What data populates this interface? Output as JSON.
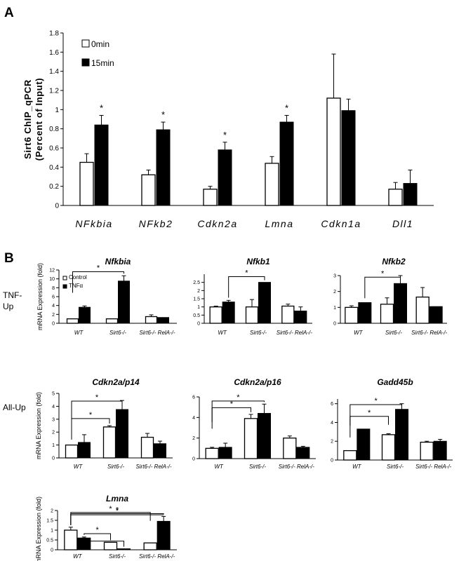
{
  "panels": [
    "A",
    "B"
  ],
  "row_labels": [
    [
      "TNF-",
      "Up"
    ],
    [
      "All-Up"
    ]
  ],
  "chart_data": [
    {
      "id": "A",
      "type": "bar",
      "title": "",
      "ylabel": "Sirt6 ChIP_qPCR (Percent of Input)",
      "ylabel_lines": [
        "Sirt6 ChIP_qPCR",
        "(Percent of Input)"
      ],
      "xlabel": "",
      "ylim": [
        0,
        1.8
      ],
      "yticks": [
        0,
        0.2,
        0.4,
        0.6,
        0.8,
        1,
        1.2,
        1.4,
        1.6,
        1.8
      ],
      "categories": [
        "NFkbia",
        "NFkb2",
        "Cdkn2a",
        "Lmna",
        "Cdkn1a",
        "Dll1"
      ],
      "legend": [
        "0min",
        "15min"
      ],
      "legend_position": "top-left",
      "series": [
        {
          "name": "0min",
          "color": "#ffffff",
          "values": [
            0.45,
            0.32,
            0.17,
            0.44,
            1.12,
            0.17
          ],
          "errors": [
            0.09,
            0.05,
            0.03,
            0.07,
            0.46,
            0.07
          ]
        },
        {
          "name": "15min",
          "color": "#000000",
          "values": [
            0.84,
            0.79,
            0.58,
            0.87,
            0.99,
            0.23
          ],
          "errors": [
            0.1,
            0.08,
            0.08,
            0.07,
            0.12,
            0.14
          ]
        }
      ],
      "significance": [
        {
          "category": 0,
          "label": "*"
        },
        {
          "category": 1,
          "label": "*"
        },
        {
          "category": 2,
          "label": "*"
        },
        {
          "category": 3,
          "label": "*"
        }
      ]
    },
    {
      "id": "nfkbia",
      "type": "bar",
      "title": "Nfkbia",
      "ylabel": "mRNA Expression (fold)",
      "ylim": [
        0,
        12
      ],
      "yticks": [
        0,
        2,
        4,
        6,
        8,
        10,
        12
      ],
      "categories": [
        "WT",
        "Sirt6-/-",
        "Sirt6-/- RelA-/-"
      ],
      "legend": [
        "Control",
        "TNFα"
      ],
      "legend_position": "top-left",
      "series": [
        {
          "name": "Control",
          "color": "#ffffff",
          "values": [
            1,
            1,
            1.5
          ],
          "errors": [
            0,
            0,
            0.4
          ]
        },
        {
          "name": "TNFα",
          "color": "#000000",
          "values": [
            3.6,
            9.5,
            1.3
          ],
          "errors": [
            0.3,
            1.2,
            0
          ]
        }
      ],
      "brackets": [
        {
          "from": "s0c0",
          "to": "s1c1",
          "label": "*"
        }
      ]
    },
    {
      "id": "nfkb1",
      "type": "bar",
      "title": "Nfkb1",
      "ylim": [
        0,
        3
      ],
      "yticks": [
        0,
        0.5,
        1,
        1.5,
        2,
        2.5
      ],
      "categories": [
        "WT",
        "Sirt6-/-",
        "Sirt6-/- RelA-/-"
      ],
      "series": [
        {
          "name": "Control",
          "color": "#ffffff",
          "values": [
            1,
            1,
            1.05
          ],
          "errors": [
            0.05,
            0.45,
            0.12
          ]
        },
        {
          "name": "TNFα",
          "color": "#000000",
          "values": [
            1.3,
            2.5,
            0.75
          ],
          "errors": [
            0.1,
            0,
            0.25
          ]
        }
      ],
      "brackets": [
        {
          "from": "s1c0",
          "to": "s1c1",
          "label": "*"
        }
      ]
    },
    {
      "id": "nfkb2",
      "type": "bar",
      "title": "Nfkb2",
      "ylim": [
        0,
        3
      ],
      "yticks": [
        0,
        1,
        2,
        3
      ],
      "categories": [
        "WT",
        "Sirt6-/-",
        "Sirt6-/- RelA-/-"
      ],
      "series": [
        {
          "name": "Control",
          "color": "#ffffff",
          "values": [
            1,
            1.2,
            1.65
          ],
          "errors": [
            0.1,
            0.4,
            0.6
          ]
        },
        {
          "name": "TNFα",
          "color": "#000000",
          "values": [
            1.3,
            2.5,
            1.05
          ],
          "errors": [
            0,
            0.5,
            0
          ]
        }
      ],
      "brackets": [
        {
          "from": "s1c0",
          "to": "s1c1",
          "label": "*"
        }
      ]
    },
    {
      "id": "p14",
      "type": "bar",
      "title": "Cdkn2a/p14",
      "ylabel": "mRNA Expression (fold)",
      "ylim": [
        0,
        5
      ],
      "yticks": [
        0,
        1,
        2,
        3,
        4,
        5
      ],
      "categories": [
        "WT",
        "Sirt6-/-",
        "Sirt6-/- RelA-/-"
      ],
      "series": [
        {
          "name": "Control",
          "color": "#ffffff",
          "values": [
            1,
            2.4,
            1.6
          ],
          "errors": [
            0,
            0.1,
            0.3
          ]
        },
        {
          "name": "TNFα",
          "color": "#000000",
          "values": [
            1.2,
            3.75,
            1.1
          ],
          "errors": [
            0.6,
            0.7,
            0.2
          ]
        }
      ],
      "brackets": [
        {
          "from": "s0c0",
          "to": "s0c1",
          "label": "*"
        },
        {
          "from": "s0c0",
          "to": "s1c1",
          "label": "*"
        }
      ]
    },
    {
      "id": "p16",
      "type": "bar",
      "title": "Cdkn2a/p16",
      "ylim": [
        0,
        6
      ],
      "yticks": [
        0,
        2,
        4,
        6
      ],
      "categories": [
        "WT",
        "Sirt6-/-",
        "Sirt6-/- RelA-/-"
      ],
      "series": [
        {
          "name": "Control",
          "color": "#ffffff",
          "values": [
            1,
            3.9,
            2
          ],
          "errors": [
            0.1,
            0.4,
            0.2
          ]
        },
        {
          "name": "TNFα",
          "color": "#000000",
          "values": [
            1.1,
            4.4,
            1.1
          ],
          "errors": [
            0.4,
            0.9,
            0.1
          ]
        }
      ],
      "brackets": [
        {
          "from": "s0c0",
          "to": "s0c1",
          "label": "*"
        },
        {
          "from": "s0c0",
          "to": "s1c1",
          "label": "*"
        }
      ]
    },
    {
      "id": "gadd45b",
      "type": "bar",
      "title": "Gadd45b",
      "ylim": [
        0,
        6.5
      ],
      "yticks": [
        0,
        2,
        4,
        6
      ],
      "categories": [
        "WT",
        "Sirt6-/-",
        "Sirt6-/- RelA-/-"
      ],
      "series": [
        {
          "name": "Control",
          "color": "#ffffff",
          "values": [
            1,
            2.7,
            1.9
          ],
          "errors": [
            0,
            0.1,
            0.1
          ]
        },
        {
          "name": "TNFα",
          "color": "#000000",
          "values": [
            3.3,
            5.4,
            2
          ],
          "errors": [
            0,
            0.6,
            0.2
          ]
        }
      ],
      "brackets": [
        {
          "from": "s0c0",
          "to": "s0c1",
          "label": "*"
        },
        {
          "from": "s0c0",
          "to": "s1c1",
          "label": "*"
        }
      ]
    },
    {
      "id": "lmna",
      "type": "bar",
      "title": "Lmna",
      "ylabel": "mRNA Expression (fold)",
      "ylim": [
        0,
        2
      ],
      "yticks": [
        0,
        0.5,
        1,
        1.5,
        2
      ],
      "categories": [
        "WT",
        "Sirt6-/-",
        "Sirt6-/- RelA-/-"
      ],
      "series": [
        {
          "name": "Control",
          "color": "#ffffff",
          "values": [
            1,
            0.38,
            0.35
          ],
          "errors": [
            0.15,
            0,
            0
          ]
        },
        {
          "name": "TNFα",
          "color": "#000000",
          "values": [
            0.6,
            0.05,
            1.45
          ],
          "errors": [
            0.05,
            0,
            0.25
          ]
        }
      ],
      "brackets": [
        {
          "from": "s0c0",
          "to": "s0c2",
          "label": "*"
        },
        {
          "from": "s0c0",
          "to": "s1c2",
          "label": "*"
        },
        {
          "from": "s0c0",
          "to": "s1c2",
          "label": "*"
        },
        {
          "from": "s1c0",
          "to": "s0c1",
          "label": "*"
        },
        {
          "from": "s1c0",
          "to": "s1c1",
          "label": ""
        }
      ]
    }
  ]
}
